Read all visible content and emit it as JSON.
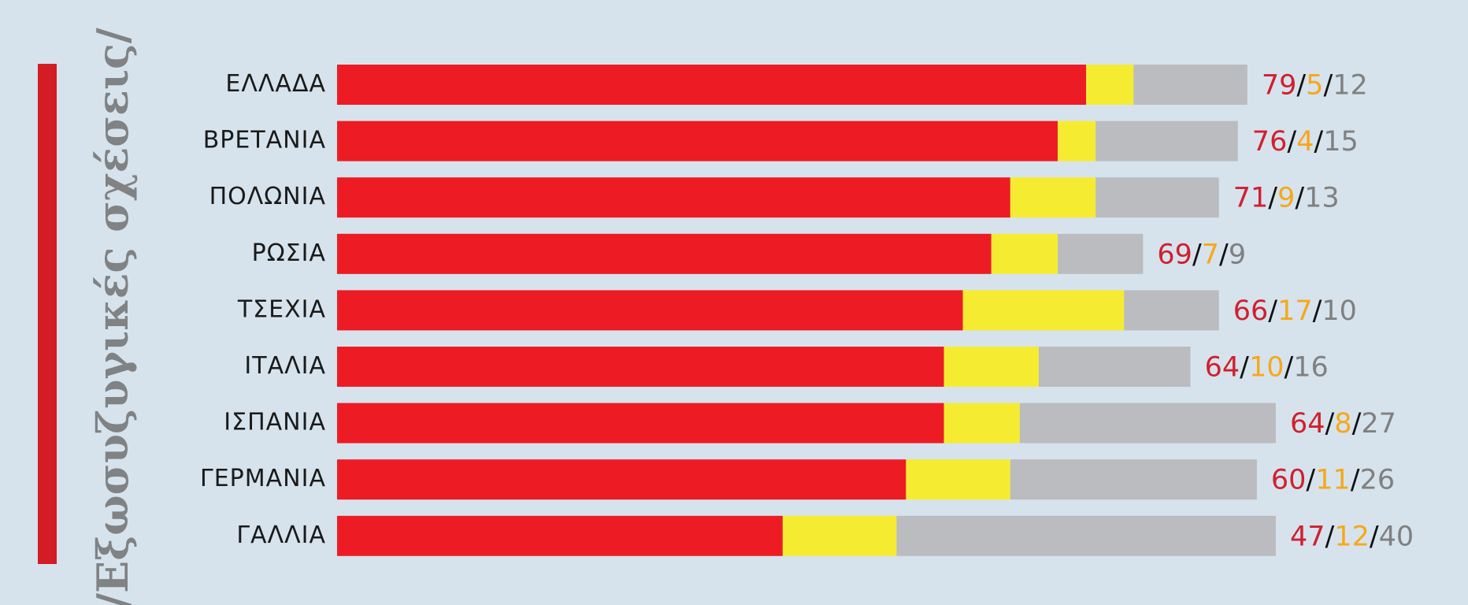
{
  "chart_data": {
    "type": "stacked-bar",
    "orientation": "horizontal",
    "title": "/Εξωσυζυγικές σχέσεις/",
    "categories": [
      "ΕΛΛΑΔΑ",
      "ΒΡΕΤΑΝΙΑ",
      "ΠΟΛΩΝΙΑ",
      "ΡΩΣΙΑ",
      "ΤΣΕΧΙΑ",
      "ΙΤΑΛΙΑ",
      "ΙΣΠΑΝΙΑ",
      "ΓΕΡΜΑΝΙΑ",
      "ΓΑΛΛΙΑ"
    ],
    "series": [
      {
        "color": "#ed1c24",
        "label_color": "#d0202e",
        "values": [
          79,
          76,
          71,
          69,
          66,
          64,
          64,
          60,
          47
        ]
      },
      {
        "color": "#f5ec32",
        "label_color": "#f6a81b",
        "values": [
          5,
          4,
          9,
          7,
          17,
          10,
          8,
          11,
          12
        ]
      },
      {
        "color": "#bbbcbf",
        "label_color": "#808080",
        "values": [
          12,
          15,
          13,
          9,
          10,
          16,
          27,
          26,
          40
        ]
      }
    ],
    "label_separator": "/"
  }
}
